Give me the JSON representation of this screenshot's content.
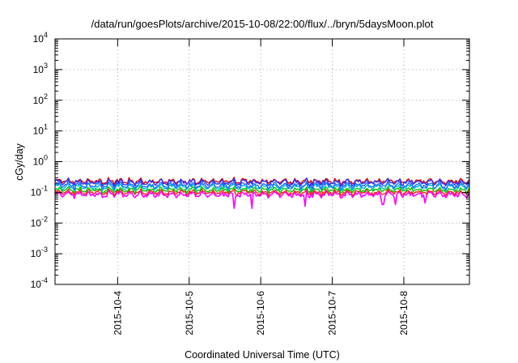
{
  "chart_data": {
    "type": "line",
    "title": "/data/run/goesPlots/archive/2015-10-08/22:00/flux/../bryn/5daysMoon.plot",
    "xlabel": "Coordinated Universal Time (UTC)",
    "ylabel": "cGy/day",
    "y_scale": "log",
    "ylim": [
      0.0001,
      10000
    ],
    "y_ticks": [
      {
        "value": 0.0001,
        "base": "10",
        "exp": "-4"
      },
      {
        "value": 0.001,
        "base": "10",
        "exp": "-3"
      },
      {
        "value": 0.01,
        "base": "10",
        "exp": "-2"
      },
      {
        "value": 0.1,
        "base": "10",
        "exp": "-1"
      },
      {
        "value": 1,
        "base": "10",
        "exp": "0"
      },
      {
        "value": 10,
        "base": "10",
        "exp": "1"
      },
      {
        "value": 100,
        "base": "10",
        "exp": "2"
      },
      {
        "value": 1000,
        "base": "10",
        "exp": "3"
      },
      {
        "value": 10000,
        "base": "10",
        "exp": "4"
      }
    ],
    "xlim": [
      "2015-10-03T03:00",
      "2015-10-08T22:00"
    ],
    "x_ticks": [
      {
        "value": "2015-10-04",
        "label": "2015-10-4"
      },
      {
        "value": "2015-10-05",
        "label": "2015-10-5"
      },
      {
        "value": "2015-10-06",
        "label": "2015-10-6"
      },
      {
        "value": "2015-10-07",
        "label": "2015-10-7"
      },
      {
        "value": "2015-10-08",
        "label": "2015-10-8"
      }
    ],
    "grid": true,
    "legend": "none",
    "series": [
      {
        "color": "#ff00ff",
        "base": 0.085,
        "amp": 0.35,
        "spikes": [
          {
            "t": "2015-10-05T15:00",
            "v": 0.03
          },
          {
            "t": "2015-10-05T21:00",
            "v": 0.03
          },
          {
            "t": "2015-10-06T15:00",
            "v": 0.035
          },
          {
            "t": "2015-10-07T17:00",
            "v": 0.04
          },
          {
            "t": "2015-10-07T21:00",
            "v": 0.04
          },
          {
            "t": "2015-10-08T07:00",
            "v": 0.045
          }
        ]
      },
      {
        "color": "#ff2020",
        "base": 0.1,
        "amp": 0.3,
        "spikes": []
      },
      {
        "color": "#00c800",
        "base": 0.12,
        "amp": 0.3,
        "spikes": []
      },
      {
        "color": "#00bcd4",
        "base": 0.15,
        "amp": 0.35,
        "spikes": []
      },
      {
        "color": "#1e6fff",
        "base": 0.17,
        "amp": 0.4,
        "spikes": []
      },
      {
        "color": "#e00000",
        "base": 0.23,
        "amp": 0.3,
        "spikes": []
      },
      {
        "color": "#3030ff",
        "base": 0.21,
        "amp": 0.35,
        "spikes": []
      }
    ]
  }
}
